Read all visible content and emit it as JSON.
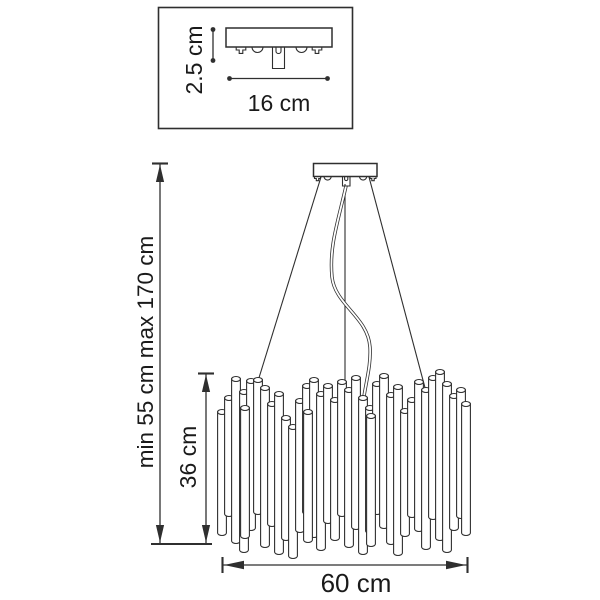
{
  "drawing": {
    "colors": {
      "line": "#2f2f2f",
      "text": "#1a1a1a",
      "background": "#ffffff"
    },
    "inset": {
      "height_label": "2.5 cm",
      "width_label": "16 cm"
    },
    "main": {
      "suspension_label": "min 55 cm max 170 cm",
      "body_height_label": "36 cm",
      "body_width_label": "60 cm"
    }
  }
}
